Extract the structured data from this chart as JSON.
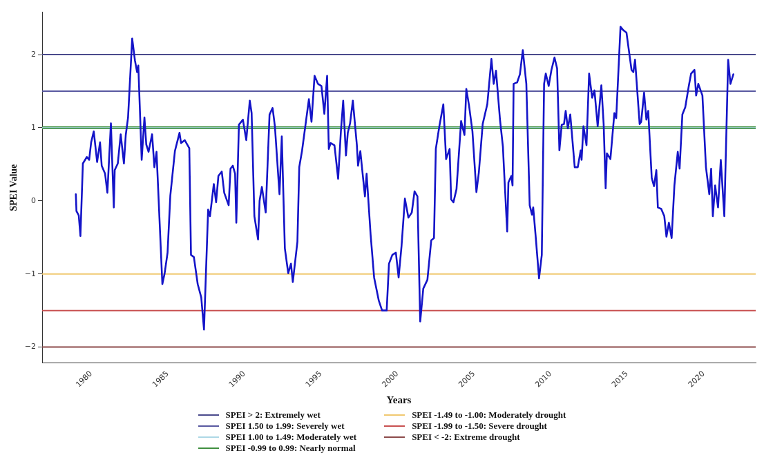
{
  "chart_data": {
    "type": "line",
    "xlabel": "Years",
    "ylabel": "SPEI Value",
    "xlim": [
      1976.8,
      2023.4
    ],
    "ylim": [
      -2.22,
      2.58
    ],
    "xticks": [
      1980,
      1985,
      1990,
      1995,
      2000,
      2005,
      2010,
      2015,
      2020
    ],
    "yticks": [
      {
        "value": -2,
        "label": "−2"
      },
      {
        "value": -1,
        "label": "−1"
      },
      0,
      1,
      2
    ],
    "grid": false,
    "legend": "bottom",
    "marker": "none",
    "line_style": "solid",
    "series": [
      {
        "color": "#1414c8",
        "x": [
          1979.0,
          1979.04,
          1979.19,
          1979.3,
          1979.46,
          1979.72,
          1979.87,
          1980.0,
          1980.17,
          1980.39,
          1980.58,
          1980.69,
          1980.91,
          1981.06,
          1981.29,
          1981.48,
          1981.54,
          1981.74,
          1981.93,
          1982.14,
          1982.26,
          1982.41,
          1982.68,
          1982.86,
          1983.0,
          1983.08,
          1983.3,
          1983.48,
          1983.6,
          1983.75,
          1983.98,
          1984.13,
          1984.27,
          1984.65,
          1984.8,
          1984.99,
          1985.17,
          1985.47,
          1985.77,
          1985.87,
          1986.11,
          1986.41,
          1986.52,
          1986.71,
          1986.96,
          1987.19,
          1987.37,
          1987.64,
          1987.76,
          1988.01,
          1988.16,
          1988.31,
          1988.53,
          1988.69,
          1988.98,
          1989.1,
          1989.25,
          1989.4,
          1989.48,
          1989.65,
          1989.91,
          1990.13,
          1990.36,
          1990.48,
          1990.66,
          1990.9,
          1991.0,
          1991.15,
          1991.4,
          1991.65,
          1991.85,
          1992.0,
          1992.3,
          1992.45,
          1992.65,
          1992.87,
          1993.05,
          1993.17,
          1993.47,
          1993.59,
          1993.77,
          1993.91,
          1994.22,
          1994.39,
          1994.59,
          1994.81,
          1995.04,
          1995.23,
          1995.41,
          1995.52,
          1995.64,
          1995.89,
          1996.13,
          1996.31,
          1996.46,
          1996.64,
          1996.76,
          1996.91,
          1997.09,
          1997.35,
          1997.43,
          1997.58,
          1997.73,
          1997.88,
          1997.99,
          1998.25,
          1998.48,
          1998.78,
          1999.0,
          1999.3,
          1999.45,
          1999.67,
          1999.9,
          2000.08,
          2000.27,
          2000.49,
          2000.72,
          2000.94,
          2001.12,
          2001.31,
          2001.49,
          2001.69,
          2001.96,
          2002.21,
          2002.39,
          2002.51,
          2002.74,
          2003.0,
          2003.18,
          2003.41,
          2003.51,
          2003.66,
          2003.86,
          2004.16,
          2004.38,
          2004.5,
          2004.68,
          2004.9,
          2005.16,
          2005.32,
          2005.57,
          2005.87,
          2006.14,
          2006.29,
          2006.44,
          2006.7,
          2006.89,
          2006.96,
          2007.17,
          2007.25,
          2007.44,
          2007.52,
          2007.59,
          2007.82,
          2008.0,
          2008.19,
          2008.42,
          2008.64,
          2008.79,
          2008.87,
          2009.04,
          2009.25,
          2009.43,
          2009.58,
          2009.69,
          2009.88,
          2010.06,
          2010.26,
          2010.43,
          2010.58,
          2010.73,
          2010.88,
          2010.99,
          2011.13,
          2011.29,
          2011.58,
          2011.78,
          2011.97,
          2012.03,
          2012.15,
          2012.35,
          2012.52,
          2012.72,
          2012.87,
          2013.08,
          2013.32,
          2013.47,
          2013.6,
          2013.68,
          2013.91,
          2014.17,
          2014.29,
          2014.57,
          2014.77,
          2014.96,
          2015.29,
          2015.41,
          2015.52,
          2015.82,
          2015.92,
          2016.11,
          2016.26,
          2016.38,
          2016.61,
          2016.76,
          2016.91,
          2017.01,
          2017.23,
          2017.43,
          2017.57,
          2017.73,
          2017.91,
          2018.09,
          2018.31,
          2018.43,
          2018.61,
          2018.8,
          2019.03,
          2019.18,
          2019.4,
          2019.51,
          2019.65,
          2019.92,
          2020.15,
          2020.37,
          2020.49,
          2020.6,
          2020.75,
          2020.94,
          2021.12,
          2021.35,
          2021.6,
          2021.75,
          2021.94
        ],
        "values": [
          0.09,
          -0.14,
          -0.2,
          -0.48,
          0.51,
          0.6,
          0.56,
          0.8,
          0.95,
          0.53,
          0.8,
          0.48,
          0.37,
          0.11,
          1.06,
          -0.09,
          0.42,
          0.51,
          0.91,
          0.51,
          0.9,
          1.14,
          2.22,
          1.92,
          1.76,
          1.85,
          0.56,
          1.14,
          0.77,
          0.67,
          0.91,
          0.46,
          0.67,
          -1.14,
          -0.99,
          -0.71,
          0.07,
          0.68,
          0.93,
          0.79,
          0.83,
          0.72,
          -0.74,
          -0.77,
          -1.14,
          -1.32,
          -1.76,
          -0.12,
          -0.21,
          0.23,
          -0.02,
          0.34,
          0.4,
          0.11,
          -0.06,
          0.44,
          0.48,
          0.37,
          -0.3,
          1.04,
          1.11,
          0.83,
          1.37,
          1.2,
          -0.21,
          -0.53,
          0.0,
          0.19,
          -0.16,
          1.18,
          1.27,
          1.02,
          0.09,
          0.88,
          -0.65,
          -0.99,
          -0.86,
          -1.11,
          -0.56,
          0.46,
          0.68,
          0.9,
          1.39,
          1.08,
          1.71,
          1.6,
          1.57,
          1.19,
          1.71,
          0.71,
          0.79,
          0.76,
          0.3,
          0.95,
          1.37,
          0.62,
          0.93,
          1.06,
          1.37,
          0.77,
          0.48,
          0.68,
          0.37,
          0.06,
          0.37,
          -0.46,
          -1.05,
          -1.36,
          -1.5,
          -1.5,
          -0.86,
          -0.74,
          -0.71,
          -1.05,
          -0.62,
          0.03,
          -0.23,
          -0.16,
          0.13,
          0.06,
          -1.65,
          -1.2,
          -1.08,
          -0.54,
          -0.51,
          0.71,
          1.02,
          1.32,
          0.57,
          0.71,
          0.02,
          -0.02,
          0.16,
          1.09,
          0.9,
          1.53,
          1.3,
          0.95,
          0.12,
          0.39,
          1.05,
          1.32,
          1.94,
          1.6,
          1.78,
          1.11,
          0.74,
          0.44,
          -0.42,
          0.25,
          0.34,
          0.21,
          1.6,
          1.62,
          1.73,
          2.06,
          1.6,
          -0.06,
          -0.19,
          -0.09,
          -0.51,
          -1.06,
          -0.74,
          1.6,
          1.74,
          1.57,
          1.79,
          1.96,
          1.81,
          0.69,
          1.04,
          1.05,
          1.23,
          0.99,
          1.18,
          0.46,
          0.46,
          0.69,
          0.56,
          1.02,
          0.76,
          1.74,
          1.41,
          1.51,
          1.02,
          1.58,
          1.05,
          0.17,
          0.65,
          0.57,
          1.2,
          1.13,
          2.38,
          2.33,
          2.3,
          1.79,
          1.76,
          1.93,
          1.05,
          1.08,
          1.48,
          1.11,
          1.23,
          0.31,
          0.2,
          0.42,
          -0.09,
          -0.11,
          -0.21,
          -0.49,
          -0.3,
          -0.51,
          0.21,
          0.67,
          0.44,
          1.18,
          1.28,
          1.57,
          1.74,
          1.79,
          1.44,
          1.6,
          1.44,
          0.46,
          0.09,
          0.44,
          -0.21,
          0.21,
          -0.09,
          0.56,
          -0.21,
          1.93,
          1.6,
          1.73
        ]
      }
    ],
    "ref_lines": [
      {
        "axis": "y",
        "value": 2,
        "label": "SPEI > 2: Extremely wet",
        "color": "#4a4a8c"
      },
      {
        "axis": "y",
        "value": 1.5,
        "label": "SPEI 1.50 to 1.99: Severely wet",
        "color": "#5858a0"
      },
      {
        "axis": "y",
        "value": 1,
        "label": "SPEI 1.00 to 1.49: Moderately wet",
        "color": "#add8e6"
      },
      {
        "axis": "y",
        "value": 1,
        "label": "SPEI -0.99 to 0.99: Nearly normal",
        "color": "#3f8f3f"
      },
      {
        "axis": "y",
        "value": -1,
        "label": "SPEI -1.49 to -1.00: Moderately drought",
        "color": "#f0c870"
      },
      {
        "axis": "y",
        "value": -1.5,
        "label": "SPEI -1.99 to -1.50: Severe drought",
        "color": "#c85050"
      },
      {
        "axis": "y",
        "value": -2,
        "label": "SPEI < -2: Extreme drought",
        "color": "#8c4a4a"
      }
    ]
  }
}
